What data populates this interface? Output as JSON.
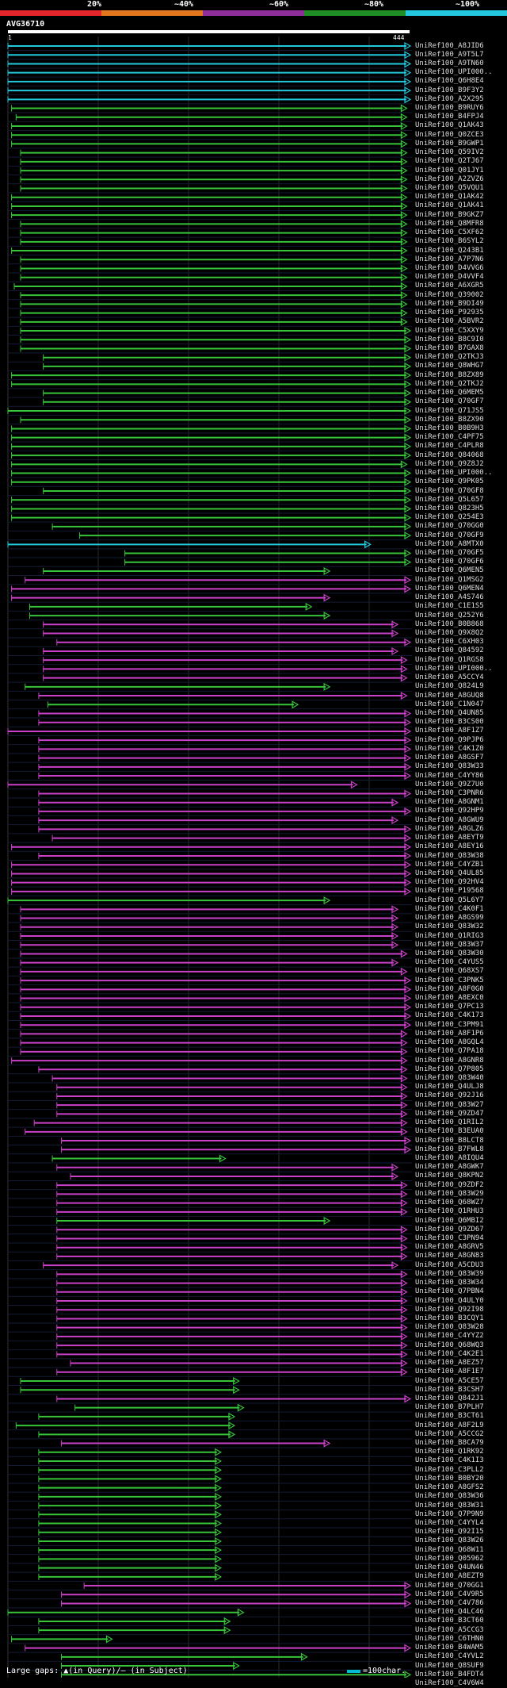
{
  "colors": {
    "red": "#e3262b",
    "orange": "#e4771d",
    "purple": "#c940c9",
    "green": "#37c43a",
    "cyan": "#23c8de",
    "query": "#ffffff",
    "background": "#000000"
  },
  "legend": [
    {
      "label": "20%",
      "color": "#e3262b"
    },
    {
      "label": "~40%",
      "color": "#e4771d"
    },
    {
      "label": "~60%",
      "color": "#8f2f9c"
    },
    {
      "label": "~80%",
      "color": "#1f8f25"
    },
    {
      "label": "~100%",
      "color": "#23c8de"
    }
  ],
  "query": {
    "id": "AVG36710",
    "start": "1",
    "end": "444",
    "length": 444
  },
  "footer": {
    "gaps_text": "Large gaps: ▲(in Query)/— (in Subject)",
    "scale_text": "=100char."
  },
  "hits": [
    {
      "id": "UniRef100_A8JID6",
      "c": "cyan",
      "s": 1,
      "e": 444
    },
    {
      "id": "UniRef100_A9T5L7",
      "c": "cyan",
      "s": 1,
      "e": 444
    },
    {
      "id": "UniRef100_A9TN60",
      "c": "cyan",
      "s": 1,
      "e": 444
    },
    {
      "id": "UniRef100_UPI000..",
      "c": "cyan",
      "s": 1,
      "e": 444
    },
    {
      "id": "UniRef100_Q6H8E4",
      "c": "cyan",
      "s": 1,
      "e": 444
    },
    {
      "id": "UniRef100_B9F3Y2",
      "c": "cyan",
      "s": 1,
      "e": 444
    },
    {
      "id": "UniRef100_A2X295",
      "c": "cyan",
      "s": 1,
      "e": 444
    },
    {
      "id": "UniRef100_B9RUY6",
      "c": "green",
      "s": 5,
      "e": 440
    },
    {
      "id": "UniRef100_B4FPJ4",
      "c": "green",
      "s": 10,
      "e": 440
    },
    {
      "id": "UniRef100_Q1AK43",
      "c": "green",
      "s": 5,
      "e": 440
    },
    {
      "id": "UniRef100_Q0ZCE3",
      "c": "green",
      "s": 5,
      "e": 440
    },
    {
      "id": "UniRef100_B9GWP1",
      "c": "green",
      "s": 5,
      "e": 440
    },
    {
      "id": "UniRef100_Q59IV2",
      "c": "green",
      "s": 15,
      "e": 440
    },
    {
      "id": "UniRef100_Q2TJ67",
      "c": "green",
      "s": 15,
      "e": 440
    },
    {
      "id": "UniRef100_Q01JY1",
      "c": "green",
      "s": 15,
      "e": 440
    },
    {
      "id": "UniRef100_A2ZVZ6",
      "c": "green",
      "s": 15,
      "e": 440
    },
    {
      "id": "UniRef100_Q5VQU1",
      "c": "green",
      "s": 15,
      "e": 440
    },
    {
      "id": "UniRef100_Q1AK42",
      "c": "green",
      "s": 5,
      "e": 440
    },
    {
      "id": "UniRef100_Q1AK41",
      "c": "green",
      "s": 5,
      "e": 440
    },
    {
      "id": "UniRef100_B9GKZ7",
      "c": "green",
      "s": 5,
      "e": 440
    },
    {
      "id": "UniRef100_Q8MFR8",
      "c": "green",
      "s": 15,
      "e": 440
    },
    {
      "id": "UniRef100_C5XF62",
      "c": "green",
      "s": 15,
      "e": 440
    },
    {
      "id": "UniRef100_B6SYL2",
      "c": "green",
      "s": 15,
      "e": 440
    },
    {
      "id": "UniRef100_Q243B1",
      "c": "green",
      "s": 5,
      "e": 440
    },
    {
      "id": "UniRef100_A7P7N6",
      "c": "green",
      "s": 15,
      "e": 440
    },
    {
      "id": "UniRef100_D4VVG6",
      "c": "green",
      "s": 15,
      "e": 440
    },
    {
      "id": "UniRef100_D4VVF4",
      "c": "green",
      "s": 15,
      "e": 440
    },
    {
      "id": "UniRef100_A6XGR5",
      "c": "green",
      "s": 8,
      "e": 440
    },
    {
      "id": "UniRef100_Q39002",
      "c": "green",
      "s": 15,
      "e": 440
    },
    {
      "id": "UniRef100_B9DI49",
      "c": "green",
      "s": 15,
      "e": 440
    },
    {
      "id": "UniRef100_P92935",
      "c": "green",
      "s": 15,
      "e": 440
    },
    {
      "id": "UniRef100_A5BVR2",
      "c": "green",
      "s": 15,
      "e": 440
    },
    {
      "id": "UniRef100_C5XXY9",
      "c": "green",
      "s": 15,
      "e": 444
    },
    {
      "id": "UniRef100_B8C9I0",
      "c": "green",
      "s": 15,
      "e": 444
    },
    {
      "id": "UniRef100_B7GAX8",
      "c": "green",
      "s": 15,
      "e": 444
    },
    {
      "id": "UniRef100_Q2TKJ3",
      "c": "green",
      "s": 40,
      "e": 444
    },
    {
      "id": "UniRef100_Q8WHG7",
      "c": "green",
      "s": 40,
      "e": 444
    },
    {
      "id": "UniRef100_B8ZX89",
      "c": "green",
      "s": 5,
      "e": 444
    },
    {
      "id": "UniRef100_Q2TKJ2",
      "c": "green",
      "s": 5,
      "e": 444
    },
    {
      "id": "UniRef100_Q6MEM5",
      "c": "green",
      "s": 40,
      "e": 444
    },
    {
      "id": "UniRef100_Q70GF7",
      "c": "green",
      "s": 40,
      "e": 444
    },
    {
      "id": "UniRef100_Q71JS5",
      "c": "green",
      "s": 1,
      "e": 444
    },
    {
      "id": "UniRef100_B8ZX90",
      "c": "green",
      "s": 15,
      "e": 444
    },
    {
      "id": "UniRef100_B0B9H3",
      "c": "green",
      "s": 5,
      "e": 444
    },
    {
      "id": "UniRef100_C4PF75",
      "c": "green",
      "s": 5,
      "e": 444
    },
    {
      "id": "UniRef100_C4PLR8",
      "c": "green",
      "s": 5,
      "e": 444
    },
    {
      "id": "UniRef100_Q84068",
      "c": "green",
      "s": 5,
      "e": 444
    },
    {
      "id": "UniRef100_Q9Z8J2",
      "c": "green",
      "s": 5,
      "e": 440
    },
    {
      "id": "UniRef100_UPI000..",
      "c": "green",
      "s": 5,
      "e": 444
    },
    {
      "id": "UniRef100_Q9PK05",
      "c": "green",
      "s": 5,
      "e": 444
    },
    {
      "id": "UniRef100_Q70GF8",
      "c": "green",
      "s": 40,
      "e": 444
    },
    {
      "id": "UniRef100_Q5L657",
      "c": "green",
      "s": 5,
      "e": 444
    },
    {
      "id": "UniRef100_Q823H5",
      "c": "green",
      "s": 5,
      "e": 444
    },
    {
      "id": "UniRef100_Q254E3",
      "c": "green",
      "s": 5,
      "e": 444
    },
    {
      "id": "UniRef100_Q70GG0",
      "c": "green",
      "s": 50,
      "e": 444
    },
    {
      "id": "UniRef100_Q70GF9",
      "c": "green",
      "s": 80,
      "e": 444
    },
    {
      "id": "UniRef100_A8MTX0",
      "c": "cyan",
      "s": 1,
      "e": 400
    },
    {
      "id": "UniRef100_Q70GF5",
      "c": "green",
      "s": 130,
      "e": 444
    },
    {
      "id": "UniRef100_Q70GF6",
      "c": "green",
      "s": 130,
      "e": 444
    },
    {
      "id": "UniRef100_Q6MEN5",
      "c": "green",
      "s": 40,
      "e": 355
    },
    {
      "id": "UniRef100_Q1MSG2",
      "c": "purple",
      "s": 20,
      "e": 444
    },
    {
      "id": "UniRef100_Q6MEN4",
      "c": "purple",
      "s": 5,
      "e": 444
    },
    {
      "id": "UniRef100_A4S746",
      "c": "purple",
      "s": 5,
      "e": 355
    },
    {
      "id": "UniRef100_C1E1S5",
      "c": "green",
      "s": 25,
      "e": 335
    },
    {
      "id": "UniRef100_Q252Y6",
      "c": "green",
      "s": 25,
      "e": 355
    },
    {
      "id": "UniRef100_B0B868",
      "c": "purple",
      "s": 40,
      "e": 430
    },
    {
      "id": "UniRef100_Q9X8Q2",
      "c": "purple",
      "s": 40,
      "e": 430
    },
    {
      "id": "UniRef100_C6XH03",
      "c": "purple",
      "s": 55,
      "e": 444
    },
    {
      "id": "UniRef100_Q84592",
      "c": "purple",
      "s": 40,
      "e": 430
    },
    {
      "id": "UniRef100_Q1RGS8",
      "c": "purple",
      "s": 40,
      "e": 440
    },
    {
      "id": "UniRef100_UPI000..",
      "c": "purple",
      "s": 40,
      "e": 440
    },
    {
      "id": "UniRef100_A5CCY4",
      "c": "purple",
      "s": 40,
      "e": 440
    },
    {
      "id": "UniRef100_Q824L9",
      "c": "green",
      "s": 20,
      "e": 355
    },
    {
      "id": "UniRef100_A8GUQ8",
      "c": "purple",
      "s": 35,
      "e": 440
    },
    {
      "id": "UniRef100_C1N047",
      "c": "green",
      "s": 45,
      "e": 320
    },
    {
      "id": "UniRef100_Q4UN85",
      "c": "purple",
      "s": 35,
      "e": 444
    },
    {
      "id": "UniRef100_B3CS00",
      "c": "purple",
      "s": 35,
      "e": 444
    },
    {
      "id": "UniRef100_A8F1Z7",
      "c": "purple",
      "s": 1,
      "e": 444
    },
    {
      "id": "UniRef100_Q9PJP6",
      "c": "purple",
      "s": 35,
      "e": 444
    },
    {
      "id": "UniRef100_C4K1Z0",
      "c": "purple",
      "s": 35,
      "e": 444
    },
    {
      "id": "UniRef100_A8GSF7",
      "c": "purple",
      "s": 35,
      "e": 444
    },
    {
      "id": "UniRef100_Q83W33",
      "c": "purple",
      "s": 35,
      "e": 444
    },
    {
      "id": "UniRef100_C4YY86",
      "c": "purple",
      "s": 35,
      "e": 444
    },
    {
      "id": "UniRef100_Q9Z7U0",
      "c": "purple",
      "s": 1,
      "e": 385
    },
    {
      "id": "UniRef100_C3PNR6",
      "c": "purple",
      "s": 35,
      "e": 444
    },
    {
      "id": "UniRef100_A8GNM1",
      "c": "purple",
      "s": 35,
      "e": 430
    },
    {
      "id": "UniRef100_Q92HP9",
      "c": "purple",
      "s": 35,
      "e": 444
    },
    {
      "id": "UniRef100_A8GWU9",
      "c": "purple",
      "s": 35,
      "e": 430
    },
    {
      "id": "UniRef100_A8GLZ6",
      "c": "purple",
      "s": 35,
      "e": 444
    },
    {
      "id": "UniRef100_A8EYT9",
      "c": "purple",
      "s": 50,
      "e": 444
    },
    {
      "id": "UniRef100_A8EY16",
      "c": "purple",
      "s": 5,
      "e": 444
    },
    {
      "id": "UniRef100_Q83W38",
      "c": "purple",
      "s": 35,
      "e": 444
    },
    {
      "id": "UniRef100_C4YZB1",
      "c": "purple",
      "s": 5,
      "e": 444
    },
    {
      "id": "UniRef100_Q4UL85",
      "c": "purple",
      "s": 5,
      "e": 444
    },
    {
      "id": "UniRef100_Q92HV4",
      "c": "purple",
      "s": 5,
      "e": 444
    },
    {
      "id": "UniRef100_P19568",
      "c": "purple",
      "s": 5,
      "e": 444
    },
    {
      "id": "UniRef100_Q5L6Y7",
      "c": "green",
      "s": 1,
      "e": 355
    },
    {
      "id": "UniRef100_C4K0F1",
      "c": "purple",
      "s": 15,
      "e": 430
    },
    {
      "id": "UniRef100_A8GS99",
      "c": "purple",
      "s": 15,
      "e": 430
    },
    {
      "id": "UniRef100_Q83W32",
      "c": "purple",
      "s": 15,
      "e": 430
    },
    {
      "id": "UniRef100_Q1RIG3",
      "c": "purple",
      "s": 15,
      "e": 430
    },
    {
      "id": "UniRef100_Q83W37",
      "c": "purple",
      "s": 15,
      "e": 430
    },
    {
      "id": "UniRef100_Q83W30",
      "c": "purple",
      "s": 15,
      "e": 440
    },
    {
      "id": "UniRef100_C4YUS5",
      "c": "purple",
      "s": 15,
      "e": 430
    },
    {
      "id": "UniRef100_Q68XS7",
      "c": "purple",
      "s": 15,
      "e": 440
    },
    {
      "id": "UniRef100_C3PNK5",
      "c": "purple",
      "s": 15,
      "e": 444
    },
    {
      "id": "UniRef100_A8F0G0",
      "c": "purple",
      "s": 15,
      "e": 444
    },
    {
      "id": "UniRef100_A8EXC0",
      "c": "purple",
      "s": 15,
      "e": 444
    },
    {
      "id": "UniRef100_Q7PC13",
      "c": "purple",
      "s": 15,
      "e": 444
    },
    {
      "id": "UniRef100_C4K173",
      "c": "purple",
      "s": 15,
      "e": 444
    },
    {
      "id": "UniRef100_C3PM91",
      "c": "purple",
      "s": 15,
      "e": 444
    },
    {
      "id": "UniRef100_A8F1P6",
      "c": "purple",
      "s": 15,
      "e": 440
    },
    {
      "id": "UniRef100_A8GQL4",
      "c": "purple",
      "s": 15,
      "e": 440
    },
    {
      "id": "UniRef100_Q7PA18",
      "c": "purple",
      "s": 15,
      "e": 440
    },
    {
      "id": "UniRef100_A8GNR8",
      "c": "purple",
      "s": 5,
      "e": 440
    },
    {
      "id": "UniRef100_Q7P805",
      "c": "purple",
      "s": 35,
      "e": 440
    },
    {
      "id": "UniRef100_Q83W40",
      "c": "purple",
      "s": 50,
      "e": 440
    },
    {
      "id": "UniRef100_Q4ULJ8",
      "c": "purple",
      "s": 55,
      "e": 440
    },
    {
      "id": "UniRef100_Q92J16",
      "c": "purple",
      "s": 55,
      "e": 440
    },
    {
      "id": "UniRef100_Q83W27",
      "c": "purple",
      "s": 55,
      "e": 440
    },
    {
      "id": "UniRef100_Q9ZD47",
      "c": "purple",
      "s": 55,
      "e": 440
    },
    {
      "id": "UniRef100_Q1RIL2",
      "c": "purple",
      "s": 30,
      "e": 440
    },
    {
      "id": "UniRef100_B3EUA0",
      "c": "purple",
      "s": 20,
      "e": 440
    },
    {
      "id": "UniRef100_B8LCT8",
      "c": "purple",
      "s": 60,
      "e": 444
    },
    {
      "id": "UniRef100_B7FWL8",
      "c": "purple",
      "s": 60,
      "e": 444
    },
    {
      "id": "UniRef100_A8IQU4",
      "c": "green",
      "s": 50,
      "e": 240
    },
    {
      "id": "UniRef100_A8GWK7",
      "c": "purple",
      "s": 55,
      "e": 430
    },
    {
      "id": "UniRef100_Q8KPN2",
      "c": "purple",
      "s": 70,
      "e": 430
    },
    {
      "id": "UniRef100_Q9ZDF2",
      "c": "purple",
      "s": 55,
      "e": 440
    },
    {
      "id": "UniRef100_Q83W29",
      "c": "purple",
      "s": 55,
      "e": 440
    },
    {
      "id": "UniRef100_Q68WZ7",
      "c": "purple",
      "s": 55,
      "e": 440
    },
    {
      "id": "UniRef100_Q1RHU3",
      "c": "purple",
      "s": 55,
      "e": 440
    },
    {
      "id": "UniRef100_Q6MBI2",
      "c": "green",
      "s": 55,
      "e": 355
    },
    {
      "id": "UniRef100_Q9ZD67",
      "c": "purple",
      "s": 55,
      "e": 440
    },
    {
      "id": "UniRef100_C3PN94",
      "c": "purple",
      "s": 55,
      "e": 440
    },
    {
      "id": "UniRef100_A8GRV5",
      "c": "purple",
      "s": 55,
      "e": 440
    },
    {
      "id": "UniRef100_A8GN83",
      "c": "purple",
      "s": 55,
      "e": 440
    },
    {
      "id": "UniRef100_A5CDU3",
      "c": "purple",
      "s": 40,
      "e": 430
    },
    {
      "id": "UniRef100_Q83W39",
      "c": "purple",
      "s": 55,
      "e": 440
    },
    {
      "id": "UniRef100_Q83W34",
      "c": "purple",
      "s": 55,
      "e": 440
    },
    {
      "id": "UniRef100_Q7PBN4",
      "c": "purple",
      "s": 55,
      "e": 440
    },
    {
      "id": "UniRef100_Q4ULY0",
      "c": "purple",
      "s": 55,
      "e": 440
    },
    {
      "id": "UniRef100_Q92I98",
      "c": "purple",
      "s": 55,
      "e": 440
    },
    {
      "id": "UniRef100_B3CQY1",
      "c": "purple",
      "s": 55,
      "e": 440
    },
    {
      "id": "UniRef100_Q83W28",
      "c": "purple",
      "s": 55,
      "e": 440
    },
    {
      "id": "UniRef100_C4YYZ2",
      "c": "purple",
      "s": 55,
      "e": 440
    },
    {
      "id": "UniRef100_Q68WQ3",
      "c": "purple",
      "s": 55,
      "e": 440
    },
    {
      "id": "UniRef100_C4K2E1",
      "c": "purple",
      "s": 55,
      "e": 440
    },
    {
      "id": "UniRef100_A8EZ57",
      "c": "purple",
      "s": 70,
      "e": 440
    },
    {
      "id": "UniRef100_A8F1E7",
      "c": "purple",
      "s": 55,
      "e": 440
    },
    {
      "id": "UniRef100_A5CE57",
      "c": "green",
      "s": 15,
      "e": 255
    },
    {
      "id": "UniRef100_B3CSH7",
      "c": "green",
      "s": 15,
      "e": 255
    },
    {
      "id": "UniRef100_Q842J1",
      "c": "purple",
      "s": 55,
      "e": 444
    },
    {
      "id": "UniRef100_B7PLH7",
      "c": "green",
      "s": 75,
      "e": 260
    },
    {
      "id": "UniRef100_B3CT61",
      "c": "green",
      "s": 35,
      "e": 250
    },
    {
      "id": "UniRef100_A8F2L9",
      "c": "green",
      "s": 10,
      "e": 250
    },
    {
      "id": "UniRef100_A5CCG2",
      "c": "green",
      "s": 35,
      "e": 250
    },
    {
      "id": "UniRef100_B8CA79",
      "c": "purple",
      "s": 60,
      "e": 355
    },
    {
      "id": "UniRef100_Q1RK92",
      "c": "green",
      "s": 35,
      "e": 235
    },
    {
      "id": "UniRef100_C4K1I3",
      "c": "green",
      "s": 35,
      "e": 235
    },
    {
      "id": "UniRef100_C3PLL2",
      "c": "green",
      "s": 35,
      "e": 235
    },
    {
      "id": "UniRef100_B0BY20",
      "c": "green",
      "s": 35,
      "e": 235
    },
    {
      "id": "UniRef100_A8GFS2",
      "c": "green",
      "s": 35,
      "e": 235
    },
    {
      "id": "UniRef100_Q83W36",
      "c": "green",
      "s": 35,
      "e": 235
    },
    {
      "id": "UniRef100_Q83W31",
      "c": "green",
      "s": 35,
      "e": 235
    },
    {
      "id": "UniRef100_Q7P9N9",
      "c": "green",
      "s": 35,
      "e": 235
    },
    {
      "id": "UniRef100_C4YYL4",
      "c": "green",
      "s": 35,
      "e": 235
    },
    {
      "id": "UniRef100_Q92I15",
      "c": "green",
      "s": 35,
      "e": 235
    },
    {
      "id": "UniRef100_Q83W26",
      "c": "green",
      "s": 35,
      "e": 235
    },
    {
      "id": "UniRef100_Q68W11",
      "c": "green",
      "s": 35,
      "e": 235
    },
    {
      "id": "UniRef100_Q05962",
      "c": "green",
      "s": 35,
      "e": 235
    },
    {
      "id": "UniRef100_Q4UN46",
      "c": "green",
      "s": 35,
      "e": 235
    },
    {
      "id": "UniRef100_A8EZT9",
      "c": "green",
      "s": 35,
      "e": 235
    },
    {
      "id": "UniRef100_Q70GG1",
      "c": "purple",
      "s": 85,
      "e": 444
    },
    {
      "id": "UniRef100_C4V9R5",
      "c": "purple",
      "s": 60,
      "e": 444
    },
    {
      "id": "UniRef100_C4V786",
      "c": "purple",
      "s": 60,
      "e": 444
    },
    {
      "id": "UniRef100_Q4LC46",
      "c": "green",
      "s": 1,
      "e": 260
    },
    {
      "id": "UniRef100_B3CT60",
      "c": "green",
      "s": 35,
      "e": 245
    },
    {
      "id": "UniRef100_A5CCG3",
      "c": "green",
      "s": 35,
      "e": 245
    },
    {
      "id": "UniRef100_C6THN0",
      "c": "green",
      "s": 5,
      "e": 115
    },
    {
      "id": "UniRef100_B4WAM5",
      "c": "purple",
      "s": 20,
      "e": 444
    },
    {
      "id": "UniRef100_C4YVL2",
      "c": "green",
      "s": 60,
      "e": 330
    },
    {
      "id": "UniRef100_Q8SUF9",
      "c": "green",
      "s": 60,
      "e": 255
    },
    {
      "id": "UniRef100_B4FDT4",
      "c": "green",
      "s": 60,
      "e": 444
    },
    {
      "id": "UniRef100_C4V6W4",
      "c": "purple",
      "s": 85,
      "e": 444
    }
  ]
}
